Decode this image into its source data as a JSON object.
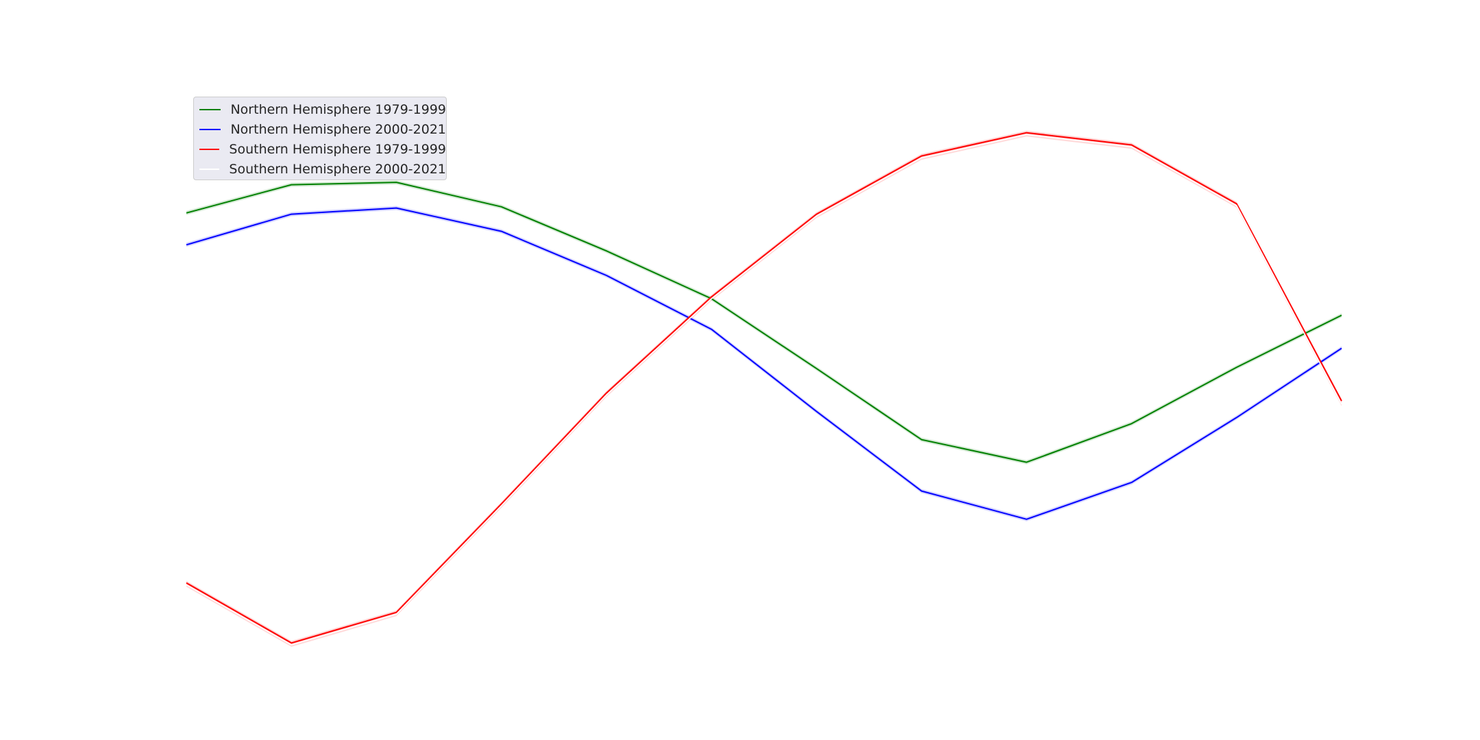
{
  "chart_data": {
    "type": "line",
    "title": "",
    "xlabel": "",
    "ylabel": "",
    "x": [
      1,
      2,
      3,
      4,
      5,
      6,
      7,
      8,
      9,
      10,
      11,
      12
    ],
    "xlim": [
      1,
      12
    ],
    "ylim": [
      0,
      1
    ],
    "grid": false,
    "legend_position": "upper-left",
    "series": [
      {
        "name": "Northern Hemisphere 1979-1999",
        "color": "#008000",
        "values": [
          0.762,
          0.808,
          0.812,
          0.772,
          0.7,
          0.622,
          0.508,
          0.392,
          0.355,
          0.418,
          0.51,
          0.595
        ]
      },
      {
        "name": "Northern Hemisphere 2000-2021",
        "color": "#0000ff",
        "values": [
          0.71,
          0.76,
          0.77,
          0.732,
          0.66,
          0.572,
          0.438,
          0.308,
          0.262,
          0.322,
          0.428,
          0.541
        ]
      },
      {
        "name": "Southern Hemisphere 1979-1999",
        "color": "#ff0000",
        "values": [
          0.158,
          0.06,
          0.11,
          0.287,
          0.468,
          0.625,
          0.76,
          0.855,
          0.893,
          0.873,
          0.777,
          0.455
        ]
      },
      {
        "name": "Southern Hemisphere 2000-2021",
        "color": "#ffffff",
        "values": [
          0.155,
          0.057,
          0.107,
          0.284,
          0.465,
          0.622,
          0.757,
          0.852,
          0.89,
          0.87,
          0.774,
          0.45
        ]
      }
    ]
  }
}
